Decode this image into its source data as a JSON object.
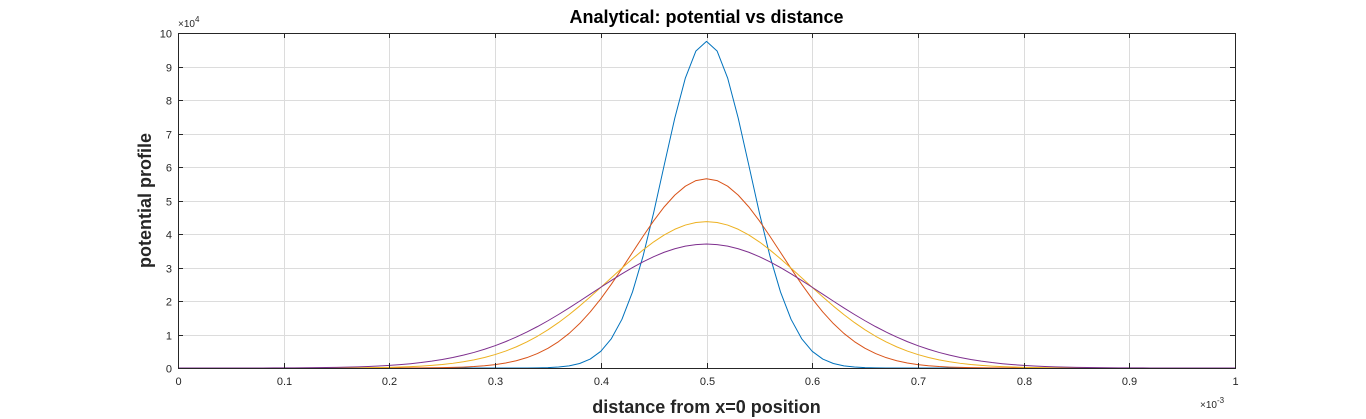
{
  "chart_data": {
    "type": "line",
    "title": "Analytical: potential vs distance",
    "xlabel": "distance from x=0 position",
    "ylabel": "potential profile",
    "x_multiplier_label": "×10",
    "x_multiplier_exponent": "-3",
    "y_multiplier_label": "×10",
    "y_multiplier_exponent": "4",
    "xlim": [
      0,
      1
    ],
    "ylim": [
      0,
      10
    ],
    "x_ticks": [
      "0",
      "0.1",
      "0.2",
      "0.3",
      "0.4",
      "0.5",
      "0.6",
      "0.7",
      "0.8",
      "0.9",
      "1"
    ],
    "y_ticks": [
      "0",
      "1",
      "2",
      "3",
      "4",
      "5",
      "6",
      "7",
      "8",
      "9",
      "10"
    ],
    "grid": true,
    "box": true,
    "series": [
      {
        "color": "#0072BD",
        "peak_x": 0.5,
        "peak": 9.75,
        "sigma": 0.041
      },
      {
        "color": "#D95319",
        "peak_x": 0.5,
        "peak": 5.65,
        "sigma": 0.0705
      },
      {
        "color": "#EDB120",
        "peak_x": 0.5,
        "peak": 4.37,
        "sigma": 0.0915
      },
      {
        "color": "#7E2F8E",
        "peak_x": 0.5,
        "peak": 3.7,
        "sigma": 0.108
      }
    ]
  }
}
